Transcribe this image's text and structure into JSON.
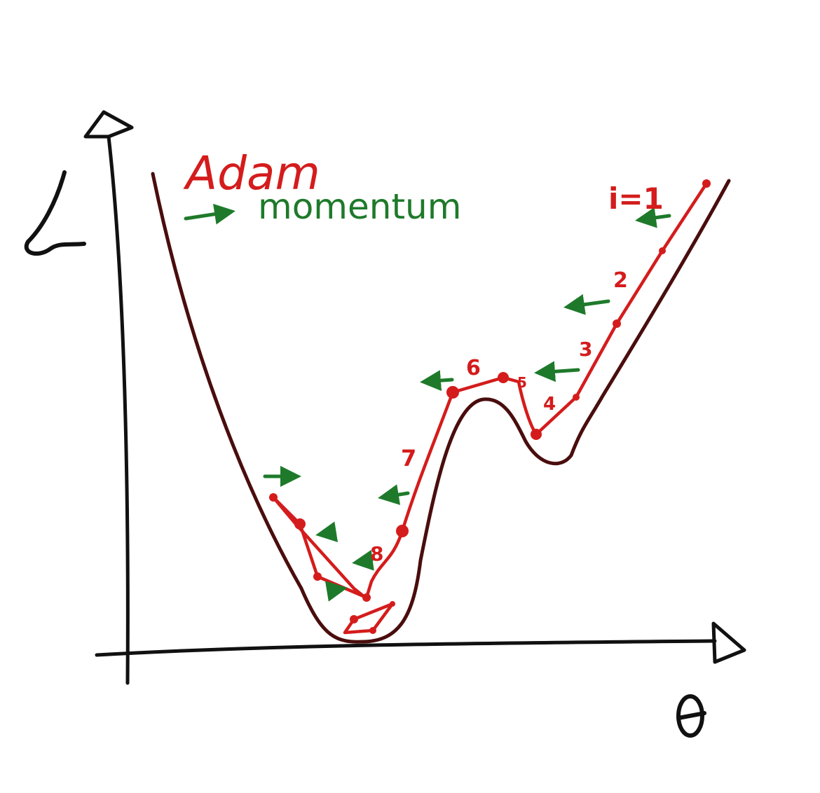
{
  "axes": {
    "y_label": "L",
    "x_label": "θ"
  },
  "legend": {
    "title": "Adam",
    "momentum_label": "momentum"
  },
  "steps": [
    {
      "label": "i=1"
    },
    {
      "label": "2"
    },
    {
      "label": "3"
    },
    {
      "label": "4"
    },
    {
      "label": "5"
    },
    {
      "label": "6"
    },
    {
      "label": "7"
    },
    {
      "label": "8"
    }
  ],
  "colors": {
    "axis": "#111111",
    "loss_curve": "#4a0d0d",
    "adam_path": "#d41c1c",
    "momentum": "#1e7a2a"
  }
}
